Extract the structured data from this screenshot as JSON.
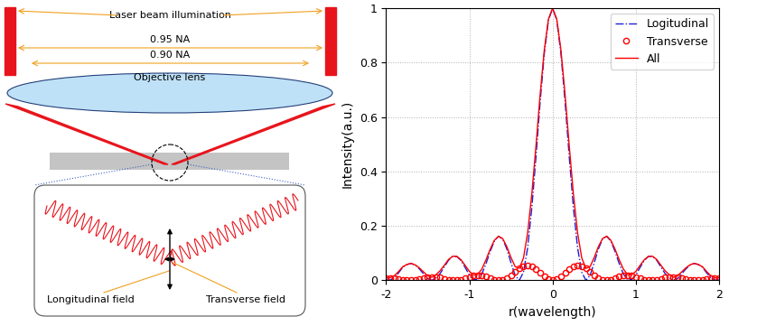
{
  "diagram": {
    "illumination_label": "Laser beam illumination",
    "na_labels": [
      "0.95 NA",
      "0.90 NA"
    ],
    "lens_label": "Objective lens",
    "field_labels": {
      "longitudinal": "Longitudinal field",
      "transverse": "Transverse field"
    }
  },
  "chart_data": {
    "type": "line",
    "x_label": "r(wavelength)",
    "y_label": "Intensity(a.u.)",
    "x": [
      -2,
      -1.95,
      -1.9,
      -1.85,
      -1.8,
      -1.75,
      -1.7,
      -1.65,
      -1.6,
      -1.55,
      -1.5,
      -1.45,
      -1.4,
      -1.35,
      -1.3,
      -1.25,
      -1.2,
      -1.15,
      -1.1,
      -1.05,
      -1,
      -0.95,
      -0.9,
      -0.85,
      -0.8,
      -0.75,
      -0.7,
      -0.65,
      -0.6,
      -0.55,
      -0.5,
      -0.45,
      -0.4,
      -0.35,
      -0.3,
      -0.25,
      -0.2,
      -0.15,
      -0.1,
      -0.05,
      0,
      0.05,
      0.1,
      0.15,
      0.2,
      0.25,
      0.3,
      0.35,
      0.4,
      0.45,
      0.5,
      0.55,
      0.6,
      0.65,
      0.7,
      0.75,
      0.8,
      0.85,
      0.9,
      0.95,
      1,
      1.05,
      1.1,
      1.15,
      1.2,
      1.25,
      1.3,
      1.35,
      1.4,
      1.45,
      1.5,
      1.55,
      1.6,
      1.65,
      1.7,
      1.75,
      1.8,
      1.85,
      1.9,
      1.95,
      2
    ],
    "series": [
      {
        "name": "Logitudinal",
        "color": "#1f1fd6",
        "line_style": "dashdot",
        "marker": "none",
        "values": [
          0.0013,
          0.0013,
          0.01,
          0.0276,
          0.048,
          0.058,
          0.0623,
          0.0557,
          0.042,
          0.024,
          0.0064,
          0,
          0.0092,
          0.0256,
          0.0493,
          0.074,
          0.0882,
          0.0876,
          0.0729,
          0.0472,
          0.0202,
          0.0026,
          0.0026,
          0.0232,
          0.0613,
          0.106,
          0.144,
          0.162,
          0.152,
          0.1157,
          0.065,
          0.0186,
          0.0001,
          0.0298,
          0.119,
          0.266,
          0.453,
          0.655,
          0.833,
          0.956,
          1,
          0.956,
          0.833,
          0.655,
          0.453,
          0.266,
          0.119,
          0.0298,
          0.0001,
          0.0186,
          0.065,
          0.1157,
          0.152,
          0.162,
          0.144,
          0.106,
          0.0613,
          0.0232,
          0.0026,
          0.0026,
          0.0202,
          0.0472,
          0.0729,
          0.0876,
          0.0882,
          0.074,
          0.0493,
          0.0256,
          0.0092,
          0,
          0.0064,
          0.024,
          0.042,
          0.0557,
          0.0623,
          0.058,
          0.048,
          0.0276,
          0.01,
          0.0013,
          0.0013
        ]
      },
      {
        "name": "Transverse",
        "color": "#ff0000",
        "line_style": "none",
        "marker": "circle",
        "values": [
          0.0086,
          0.0086,
          0.0071,
          0.0047,
          0.002,
          0.0004,
          0.0001,
          0.0013,
          0.0036,
          0.0071,
          0.0101,
          0.0118,
          0.0118,
          0.0101,
          0.0065,
          0.0027,
          0.0004,
          0.0003,
          0.0027,
          0.0075,
          0.013,
          0.0176,
          0.0193,
          0.018,
          0.0144,
          0.0083,
          0.003,
          0,
          0.0016,
          0.0081,
          0.019,
          0.0319,
          0.0441,
          0.0525,
          0.0548,
          0.0502,
          0.04,
          0.0265,
          0.0132,
          0.0035,
          0,
          0.0035,
          0.0132,
          0.0265,
          0.04,
          0.0502,
          0.0548,
          0.0525,
          0.0441,
          0.0319,
          0.019,
          0.0081,
          0.0016,
          0,
          0.003,
          0.0083,
          0.0144,
          0.018,
          0.0193,
          0.0176,
          0.013,
          0.0075,
          0.0027,
          0.0003,
          0.0004,
          0.0027,
          0.0065,
          0.0101,
          0.0118,
          0.0118,
          0.0101,
          0.0071,
          0.0036,
          0.0013,
          0.0001,
          0.0004,
          0.002,
          0.0047,
          0.0071,
          0.0086,
          0.0086
        ]
      },
      {
        "name": "All",
        "color": "#ff0000",
        "line_style": "solid",
        "marker": "none",
        "values": [
          0.0099,
          0.0099,
          0.0171,
          0.0323,
          0.05,
          0.0584,
          0.0624,
          0.057,
          0.0456,
          0.0311,
          0.0165,
          0.0118,
          0.021,
          0.0357,
          0.0558,
          0.0767,
          0.0886,
          0.0879,
          0.0756,
          0.0547,
          0.0332,
          0.0202,
          0.0219,
          0.0412,
          0.0757,
          0.1143,
          0.147,
          0.162,
          0.1536,
          0.1238,
          0.084,
          0.0505,
          0.0442,
          0.0823,
          0.1738,
          0.3162,
          0.493,
          0.6815,
          0.8462,
          0.9595,
          1,
          0.9595,
          0.8462,
          0.6815,
          0.493,
          0.3162,
          0.1738,
          0.0823,
          0.0442,
          0.0505,
          0.084,
          0.1238,
          0.1536,
          0.162,
          0.147,
          0.1143,
          0.0757,
          0.0412,
          0.0219,
          0.0202,
          0.0332,
          0.0547,
          0.0756,
          0.0879,
          0.0886,
          0.0767,
          0.0558,
          0.0357,
          0.021,
          0.0118,
          0.0165,
          0.0311,
          0.0456,
          0.057,
          0.0624,
          0.0584,
          0.05,
          0.0323,
          0.0171,
          0.0099,
          0.0099
        ]
      }
    ],
    "xlim": [
      -2,
      2
    ],
    "xticks": [
      -2,
      -1,
      0,
      1,
      2
    ],
    "ylim": [
      0,
      1
    ],
    "yticks": [
      0,
      0.2,
      0.4,
      0.6,
      0.8,
      1
    ],
    "grid": true,
    "legend": "upper right"
  }
}
